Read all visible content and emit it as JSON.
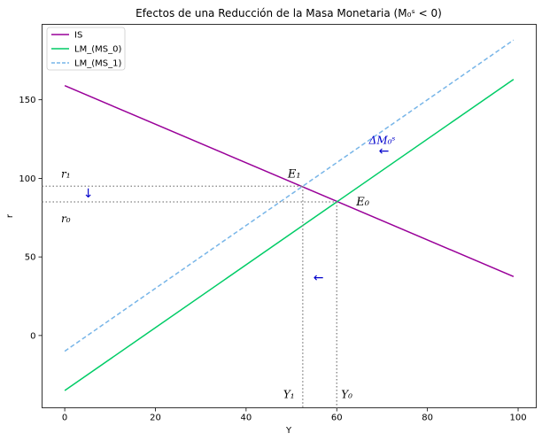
{
  "chart_data": {
    "type": "line",
    "title": "Efectos de una Reducción de la Masa Monetaria (M₀ˢ < 0)",
    "xlabel": "Y",
    "ylabel": "r",
    "xlim": [
      -5,
      104
    ],
    "ylim": [
      -46,
      198
    ],
    "x_ticks": [
      0,
      20,
      40,
      60,
      80,
      100
    ],
    "y_ticks": [
      0,
      50,
      100,
      150
    ],
    "grid": false,
    "legend_position": "top-left",
    "series": [
      {
        "name": "IS",
        "color": "#990099",
        "dash": "solid",
        "x": [
          0,
          99
        ],
        "y": [
          159,
          37.5
        ]
      },
      {
        "name": "LM_(MS_0)",
        "color": "#00cc66",
        "dash": "solid",
        "x": [
          0,
          99
        ],
        "y": [
          -35,
          163
        ]
      },
      {
        "name": "LM_(MS_1)",
        "color": "#77b5e8",
        "dash": "dashed",
        "x": [
          0,
          99
        ],
        "y": [
          -10,
          188
        ]
      }
    ],
    "equilibria": [
      {
        "label": "E₀",
        "x": 60,
        "y": 85,
        "y_label": "Y₀",
        "r_label": "r₀"
      },
      {
        "label": "E₁",
        "x": 52.5,
        "y": 95,
        "y_label": "Y₁",
        "r_label": "r₁"
      }
    ],
    "annotations": [
      {
        "text": "ΔM₀ˢ",
        "x": 72,
        "y": 122
      },
      {
        "text": "←",
        "x": 71,
        "y": 117
      },
      {
        "text": "↓",
        "x": 5,
        "y": 89
      },
      {
        "text": "←",
        "x": 56,
        "y": 37
      }
    ]
  }
}
